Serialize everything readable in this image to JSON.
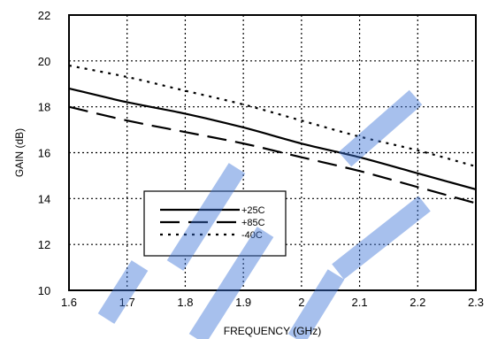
{
  "chart_data": {
    "type": "line",
    "xlabel": "FREQUENCY (GHz)",
    "ylabel": "GAIN (dB)",
    "xlim": [
      1.6,
      2.3
    ],
    "ylim": [
      10,
      22
    ],
    "x_ticks": [
      "1.6",
      "1.7",
      "1.8",
      "1.9",
      "2",
      "2.1",
      "2.2",
      "2.3"
    ],
    "y_ticks": [
      "10",
      "12",
      "14",
      "16",
      "18",
      "20",
      "22"
    ],
    "grid": true,
    "legend_position": "lower-left",
    "x": [
      1.6,
      1.7,
      1.8,
      1.9,
      2.0,
      2.1,
      2.2,
      2.3
    ],
    "series": [
      {
        "name": "+25C",
        "style": "solid",
        "values": [
          18.8,
          18.2,
          17.7,
          17.1,
          16.4,
          15.8,
          15.1,
          14.4
        ]
      },
      {
        "name": "+85C",
        "style": "dashed",
        "values": [
          18.0,
          17.4,
          16.9,
          16.4,
          15.8,
          15.2,
          14.5,
          13.8
        ]
      },
      {
        "name": "-40C",
        "style": "dotted",
        "values": [
          19.8,
          19.3,
          18.7,
          18.1,
          17.4,
          16.7,
          16.1,
          15.4
        ]
      }
    ],
    "colors": {
      "line": "#000000",
      "grid": "#000000",
      "watermark": "#3b74d8"
    }
  }
}
